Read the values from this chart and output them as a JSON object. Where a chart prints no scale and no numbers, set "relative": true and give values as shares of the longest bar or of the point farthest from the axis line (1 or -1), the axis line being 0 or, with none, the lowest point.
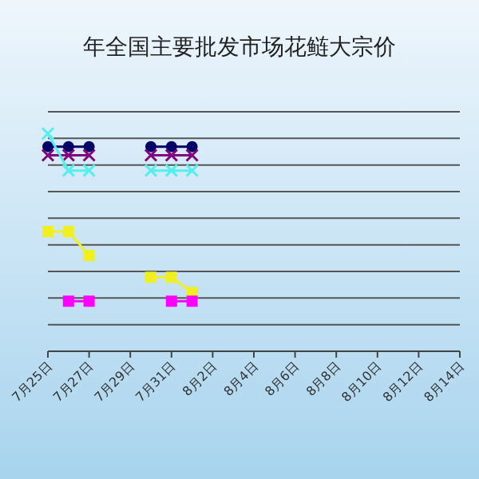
{
  "chart_data": {
    "type": "line",
    "title": "年全国主要批发市场花鲢大宗价",
    "categories": [
      "7月25日",
      null,
      "7月27日",
      null,
      "7月29日",
      null,
      "7月31日",
      null,
      "8月2日",
      null,
      "8月4日",
      null,
      "8月6日",
      null,
      "8月8日",
      null,
      "8月10日",
      null,
      "8月12日",
      null,
      "8月14日"
    ],
    "relative": true,
    "grid": true,
    "series": [
      {
        "color": "#000066",
        "marker": "circle",
        "values": [
          0.94,
          0.94,
          0.94,
          null,
          null,
          0.94,
          0.94,
          0.94,
          null,
          null,
          null,
          null,
          null,
          null,
          null,
          null,
          null,
          null,
          null,
          null,
          null
        ]
      },
      {
        "color": "#800080",
        "marker": "cross",
        "values": [
          0.9,
          0.9,
          0.9,
          null,
          null,
          0.9,
          0.9,
          0.9,
          null,
          null,
          null,
          null,
          null,
          null,
          null,
          null,
          null,
          null,
          null,
          null,
          null
        ]
      },
      {
        "color": "#55eeee",
        "marker": "cross",
        "values": [
          1,
          0.83,
          0.83,
          null,
          null,
          0.83,
          0.83,
          0.83,
          null,
          null,
          null,
          null,
          null,
          null,
          null,
          null,
          null,
          null,
          null,
          null,
          null
        ]
      },
      {
        "color": "#f0f020",
        "marker": "square",
        "values": [
          0.55,
          0.55,
          0.44,
          null,
          null,
          0.34,
          0.34,
          0.27,
          null,
          null,
          null,
          null,
          null,
          null,
          null,
          null,
          null,
          null,
          null,
          null,
          null
        ]
      },
      {
        "color": "#ff00ff",
        "marker": "square",
        "values": [
          null,
          0.23,
          0.23,
          null,
          null,
          null,
          0.23,
          0.23,
          null,
          null,
          null,
          null,
          null,
          null,
          null,
          null,
          null,
          null,
          null,
          null,
          null
        ]
      }
    ]
  }
}
